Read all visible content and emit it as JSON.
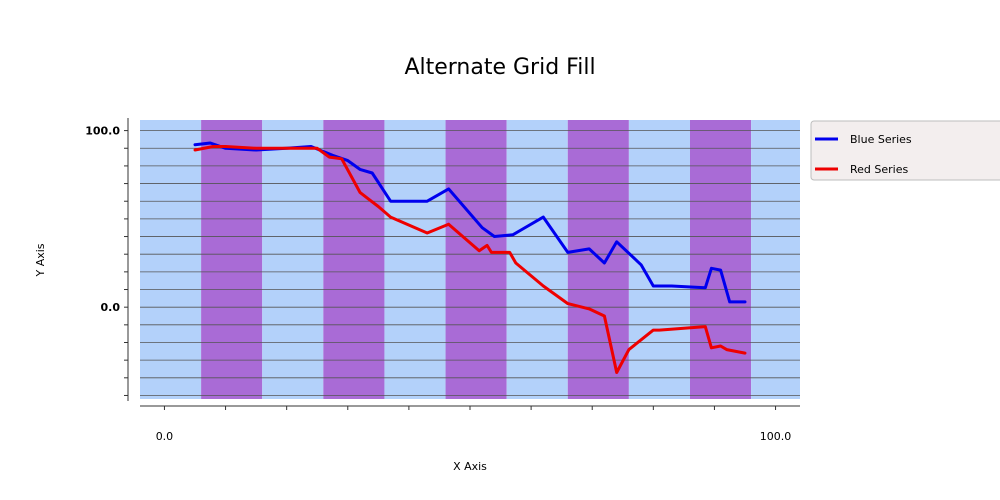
{
  "chart_data": {
    "type": "line",
    "title": "Alternate Grid Fill",
    "xlabel": "X Axis",
    "ylabel": "Y Axis",
    "xlim": [
      -4,
      104
    ],
    "ylim": [
      -52,
      106
    ],
    "x_tick_labels": [
      {
        "value": 0,
        "label": "0.0"
      },
      {
        "value": 100,
        "label": "100.0"
      }
    ],
    "y_tick_labels": [
      {
        "value": 100,
        "label": "100.0"
      },
      {
        "value": 0,
        "label": "0.0"
      }
    ],
    "x_ticks": [
      0,
      10,
      20,
      30,
      40,
      50,
      60,
      70,
      80,
      90,
      100
    ],
    "y_ticks": [
      100,
      90,
      80,
      70,
      60,
      50,
      40,
      30,
      20,
      10,
      0,
      -10,
      -20,
      -30,
      -40,
      -50
    ],
    "alternate_fill": {
      "band_width": 10,
      "first_band_start": -4,
      "colors": [
        "#b3d1fa",
        "#a96bd6"
      ]
    },
    "grid": true,
    "legend_position": "right",
    "series": [
      {
        "name": "Blue Series",
        "color": "#0000ee",
        "x": [
          5,
          7.5,
          10,
          15,
          20,
          24,
          27.5,
          30,
          32,
          34,
          37,
          43,
          46.5,
          52,
          54,
          57,
          58.5,
          62,
          66,
          69.5,
          72,
          74,
          78,
          80,
          83,
          88.5,
          89.5,
          91,
          92.5,
          95
        ],
        "y": [
          92,
          93,
          90,
          89,
          90,
          91,
          86,
          83,
          78,
          76,
          60,
          60,
          67,
          45,
          40,
          41,
          44,
          51,
          31,
          33,
          25,
          37,
          24,
          12,
          12,
          11,
          22,
          21,
          3,
          3
        ]
      },
      {
        "name": "Red Series",
        "color": "#ee0000",
        "x": [
          5,
          8,
          10,
          15,
          20,
          25,
          27,
          29,
          32,
          33.5,
          35,
          37,
          43,
          46.5,
          51.5,
          52.8,
          53.5,
          56.5,
          57.5,
          62,
          66,
          69.5,
          72,
          74,
          76,
          80,
          81,
          88.5,
          89.5,
          91,
          92,
          95
        ],
        "y": [
          89,
          91,
          91,
          90,
          90,
          90,
          85,
          84,
          65,
          61,
          57,
          51,
          42,
          47,
          32,
          35,
          31,
          31,
          25,
          12,
          2,
          -1,
          -5,
          -37,
          -24,
          -13,
          -13,
          -11,
          -23,
          -22,
          -24,
          -26
        ]
      }
    ]
  }
}
